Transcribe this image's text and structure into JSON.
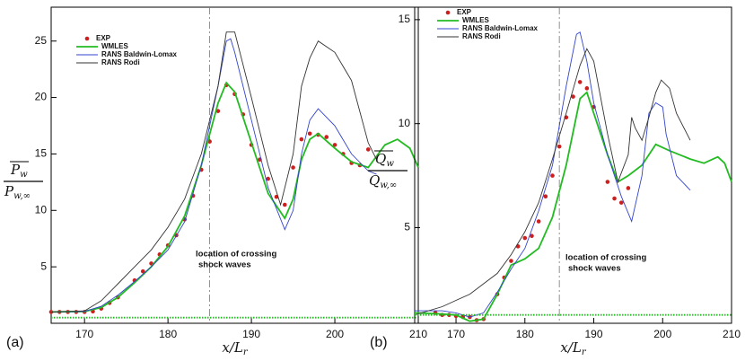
{
  "chart_data": [
    {
      "type": "line",
      "panel": "(a)",
      "xlabel": {
        "main": "x/L",
        "sub": "r"
      },
      "ylabel": {
        "num": "P",
        "num_sub": "w",
        "den": "P",
        "den_sub": "w,∞"
      },
      "xlim": [
        166,
        210
      ],
      "xticks": [
        170,
        180,
        190,
        200,
        210
      ],
      "ylim": [
        0,
        28
      ],
      "yticks": [
        5,
        10,
        15,
        20,
        25
      ],
      "vline": 185,
      "annotation": [
        "location of crossing",
        "shock waves"
      ],
      "legend": "upper left",
      "series": [
        {
          "name": "EXP",
          "color": "#cc2020",
          "style": "markers",
          "x": [
            166,
            167,
            168,
            169,
            170,
            171,
            172,
            173,
            174,
            176,
            177,
            178,
            179,
            180,
            181,
            182,
            183,
            184,
            185,
            186,
            187,
            188,
            189,
            190,
            191,
            192,
            193,
            194,
            195,
            196,
            197,
            198,
            199,
            200,
            201,
            202,
            203,
            204
          ],
          "values": [
            1,
            1,
            1,
            1,
            1,
            1.05,
            1.3,
            1.8,
            2.3,
            3.8,
            4.6,
            5.3,
            6.1,
            6.9,
            7.8,
            9.2,
            11.3,
            13.6,
            16.1,
            18.8,
            21.1,
            20.3,
            18.5,
            15.8,
            14.5,
            12.8,
            11.2,
            10.5,
            13.8,
            16.3,
            16.8,
            16.7,
            16.5,
            15.8,
            15,
            14.2,
            14,
            15.4
          ]
        },
        {
          "name": "WMLES",
          "color": "#22bb22",
          "style": "line",
          "x": [
            166,
            170,
            172,
            174,
            176,
            178,
            180,
            182,
            184,
            186,
            187,
            188,
            190,
            192,
            194,
            195,
            196,
            197,
            198,
            200,
            202,
            204,
            206,
            207.5,
            209,
            210
          ],
          "values": [
            1,
            1.05,
            1.4,
            2.3,
            3.6,
            5,
            6.8,
            9.5,
            14,
            19.5,
            21.3,
            20.5,
            16,
            11.5,
            9.3,
            11,
            14.5,
            16.3,
            16.8,
            15.5,
            14.3,
            13.8,
            15.8,
            16.3,
            15.5,
            13.8
          ]
        },
        {
          "name": "RANS Baldwin-Lomax",
          "color": "#3344cc",
          "style": "line",
          "x": [
            166,
            170,
            172,
            174,
            176,
            178,
            180,
            182,
            184,
            186,
            187,
            187.5,
            188,
            190,
            192,
            194,
            195,
            196,
            197,
            198,
            200,
            202,
            204,
            205
          ],
          "values": [
            1,
            1.05,
            1.5,
            2.5,
            3.7,
            5,
            6.5,
            9,
            14,
            21,
            25,
            25.2,
            24,
            18,
            12,
            8.3,
            10,
            15,
            18,
            19,
            17.5,
            15,
            13.5,
            13.2
          ]
        },
        {
          "name": "RANS Rodi",
          "color": "#333333",
          "style": "line",
          "x": [
            166,
            170,
            172,
            174,
            176,
            178,
            180,
            182,
            184,
            186,
            187,
            188,
            190,
            192,
            193.5,
            195,
            196,
            197,
            198,
            200,
            202,
            204,
            205
          ],
          "values": [
            1,
            1.1,
            2,
            3.5,
            5,
            6.5,
            8.5,
            11,
            15,
            21,
            25.8,
            25.8,
            20,
            14,
            10.5,
            15,
            21,
            23.5,
            25,
            24,
            21.5,
            16,
            14.5
          ]
        },
        {
          "color": "#22bb22",
          "style": "dotted",
          "x": [
            166,
            210
          ],
          "values": [
            0.5,
            0.5
          ]
        }
      ]
    },
    {
      "type": "line",
      "panel": "(b)",
      "xlabel": {
        "main": "x/L",
        "sub": "r"
      },
      "ylabel": {
        "num": "Q",
        "num_sub": "w",
        "den": "Q",
        "den_sub": "w,∞"
      },
      "xlim": [
        164,
        210
      ],
      "xticks": [
        170,
        180,
        190,
        200,
        210
      ],
      "ylim": [
        0.4,
        15.6
      ],
      "yticks": [
        5,
        10,
        15
      ],
      "vline": 185,
      "annotation": [
        "location of crossing",
        "shock waves"
      ],
      "legend": "upper left",
      "series": [
        {
          "name": "EXP",
          "color": "#cc2020",
          "style": "markers",
          "x": [
            167,
            168,
            169,
            170,
            171,
            172,
            173,
            174,
            176,
            177,
            178,
            179,
            180,
            181,
            182,
            183,
            184,
            185,
            186,
            187,
            188,
            189,
            190,
            192,
            193,
            194,
            195
          ],
          "values": [
            0.9,
            0.8,
            0.8,
            0.75,
            0.7,
            0.7,
            0.55,
            0.6,
            1.8,
            2.6,
            3.4,
            4.1,
            4.5,
            4.6,
            5.3,
            6.5,
            7.5,
            8.9,
            10.3,
            11.3,
            12,
            11.7,
            10.8,
            7.2,
            6.4,
            6.2,
            6.9
          ]
        },
        {
          "name": "WMLES",
          "color": "#22bb22",
          "style": "line",
          "x": [
            164,
            168,
            170,
            172,
            174,
            176,
            178,
            180,
            182,
            184,
            186,
            188,
            189,
            190,
            192,
            193.5,
            195,
            197,
            199,
            201,
            204,
            206,
            208,
            209,
            210
          ],
          "values": [
            0.9,
            0.85,
            0.8,
            0.5,
            0.6,
            1.8,
            3.2,
            3.5,
            4,
            5.5,
            8,
            11.2,
            11.5,
            10.5,
            8.5,
            7.2,
            7.5,
            8,
            9,
            8.7,
            8.3,
            8.1,
            8.4,
            8.1,
            7.2
          ]
        },
        {
          "name": "RANS Baldwin-Lomax",
          "color": "#3344cc",
          "style": "line",
          "x": [
            164,
            168,
            170,
            172,
            174,
            176,
            178,
            180,
            182,
            184,
            186,
            187.5,
            188,
            189,
            190,
            192,
            194,
            195.5,
            197,
            198,
            199,
            200,
            200.5,
            202,
            204
          ],
          "values": [
            1,
            1,
            0.9,
            0.7,
            0.9,
            1.9,
            3,
            4,
            5.8,
            8,
            11.8,
            14.3,
            14.4,
            13,
            11,
            8.5,
            6.5,
            5.3,
            7.5,
            10.5,
            11,
            10.8,
            9.5,
            7.5,
            6.8
          ]
        },
        {
          "name": "RANS Rodi",
          "color": "#333333",
          "style": "line",
          "x": [
            164,
            168,
            170,
            172,
            174,
            176,
            178,
            180,
            182,
            184,
            186,
            188,
            189,
            190,
            192,
            193.5,
            195,
            195.5,
            196,
            197,
            198,
            199,
            199.8,
            201,
            202,
            204
          ],
          "values": [
            0.8,
            1.2,
            1.5,
            1.8,
            2.3,
            2.8,
            3.7,
            4.8,
            6.2,
            8.3,
            10.5,
            12.8,
            13.6,
            13,
            9.5,
            7.2,
            8.5,
            10.3,
            9.8,
            9.2,
            10.3,
            11.5,
            12.1,
            11.7,
            10.5,
            9.2
          ]
        },
        {
          "color": "#22bb22",
          "style": "dotted",
          "x": [
            164,
            210
          ],
          "values": [
            0.8,
            0.8
          ]
        }
      ]
    }
  ]
}
